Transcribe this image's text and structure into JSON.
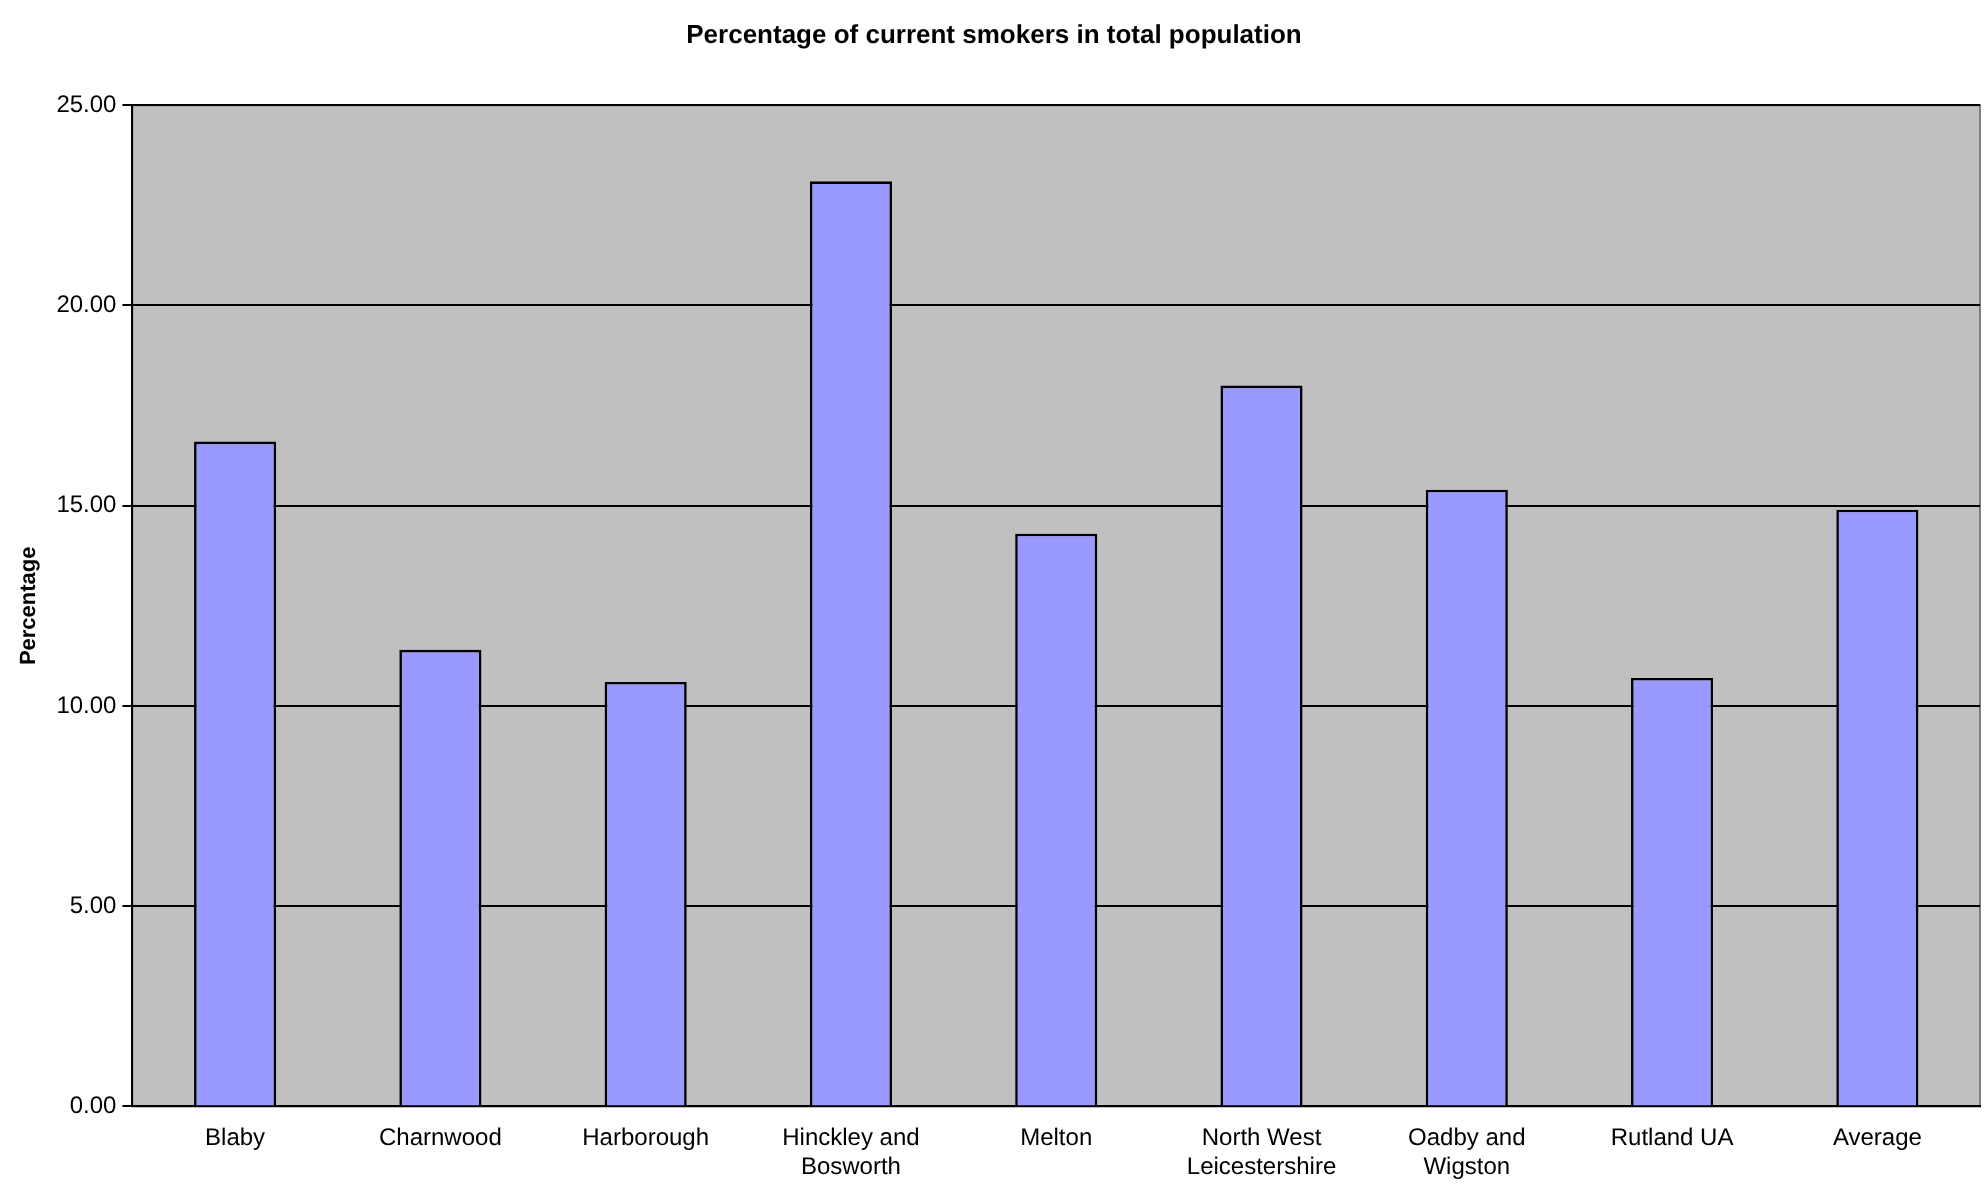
{
  "chart_data": {
    "type": "bar",
    "title": "Percentage of current smokers in total population",
    "ylabel": "Percentage",
    "categories": [
      "Blaby",
      "Charnwood",
      "Harborough",
      "Hinckley and Bosworth",
      "Melton",
      "North West Leicestershire",
      "Oadby and Wigston",
      "Rutland UA",
      "Average"
    ],
    "values": [
      16.6,
      11.4,
      10.6,
      23.1,
      14.3,
      18.0,
      15.4,
      10.7,
      14.9
    ],
    "color": "#9999ff",
    "ylim": [
      0,
      25
    ],
    "yticks": [
      {
        "value": 0,
        "label": "0.00"
      },
      {
        "value": 5,
        "label": "5.00"
      },
      {
        "value": 10,
        "label": "10.00"
      },
      {
        "value": 15,
        "label": "15.00"
      },
      {
        "value": 20,
        "label": "20.00"
      },
      {
        "value": 25,
        "label": "25.00"
      }
    ],
    "grid": "y",
    "legend": false
  }
}
